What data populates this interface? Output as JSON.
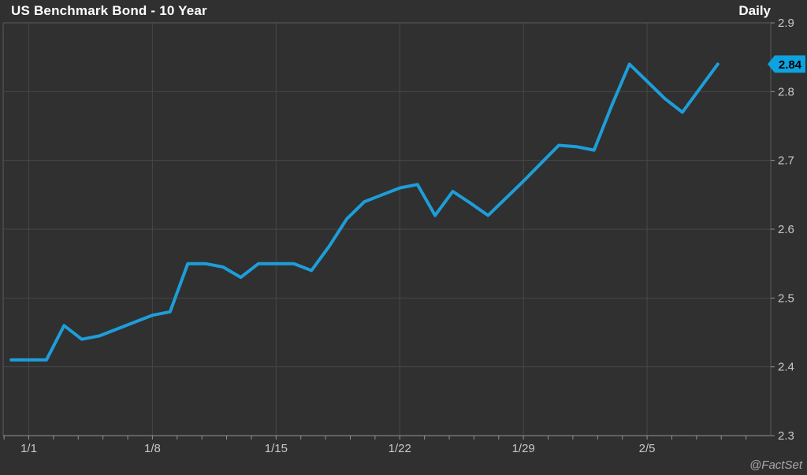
{
  "header": {
    "title": "US Benchmark Bond - 10 Year",
    "frequency": "Daily"
  },
  "watermark": "@FactSet",
  "colors": {
    "background": "#303030",
    "grid": "#474747",
    "plot_border": "#5a5a5a",
    "axis": "#919191",
    "line": "#1d9ed9",
    "badge_bg": "#0da2e0",
    "badge_text": "#000000",
    "title_text": "#ffffff",
    "tick_text": "#c8c8c8",
    "watermark_text": "#a9a9a9"
  },
  "chart_data": {
    "type": "line",
    "title": "US Benchmark Bond - 10 Year",
    "frequency": "Daily",
    "xlabel": "",
    "ylabel": "",
    "grid": true,
    "legend_position": "none",
    "ylim": [
      2.3,
      2.9
    ],
    "x_domain_day_index": [
      -0.45,
      43
    ],
    "dates": [
      "12/31",
      "1/1",
      "1/2",
      "1/3",
      "1/4",
      "1/5",
      "1/6",
      "1/7",
      "1/8",
      "1/9",
      "1/10",
      "1/11",
      "1/12",
      "1/13",
      "1/14",
      "1/15",
      "1/16",
      "1/17",
      "1/18",
      "1/19",
      "1/20",
      "1/21",
      "1/22",
      "1/23",
      "1/24",
      "1/25",
      "1/26",
      "1/27",
      "1/28",
      "1/29",
      "1/30",
      "1/31",
      "2/1",
      "2/2",
      "2/3",
      "2/4",
      "2/5",
      "2/6",
      "2/7",
      "2/8",
      "2/9"
    ],
    "values": [
      2.41,
      2.41,
      2.41,
      2.46,
      2.44,
      2.445,
      2.455,
      2.465,
      2.475,
      2.48,
      2.55,
      2.55,
      2.545,
      2.53,
      2.55,
      2.55,
      2.55,
      2.54,
      2.575,
      2.615,
      2.64,
      2.65,
      2.66,
      2.665,
      2.62,
      2.655,
      2.638,
      2.62,
      2.645,
      2.67,
      2.696,
      2.722,
      2.72,
      2.715,
      2.78,
      2.84,
      2.815,
      2.79,
      2.77,
      2.805,
      2.84
    ],
    "y_ticks": [
      {
        "value": 2.9,
        "label": "2.9"
      },
      {
        "value": 2.8,
        "label": "2.8"
      },
      {
        "value": 2.7,
        "label": "2.7"
      },
      {
        "value": 2.6,
        "label": "2.6"
      },
      {
        "value": 2.5,
        "label": "2.5"
      },
      {
        "value": 2.4,
        "label": "2.4"
      },
      {
        "value": 2.3,
        "label": "2.3"
      }
    ],
    "x_ticks": [
      {
        "day_index": 1,
        "label": "1/1"
      },
      {
        "day_index": 8,
        "label": "1/8"
      },
      {
        "day_index": 15,
        "label": "1/15"
      },
      {
        "day_index": 22,
        "label": "1/22"
      },
      {
        "day_index": 29,
        "label": "1/29"
      },
      {
        "day_index": 36,
        "label": "2/5"
      }
    ],
    "minor_ticks_per_week": 5,
    "last_value": 2.84,
    "last_value_label": "2.84"
  }
}
